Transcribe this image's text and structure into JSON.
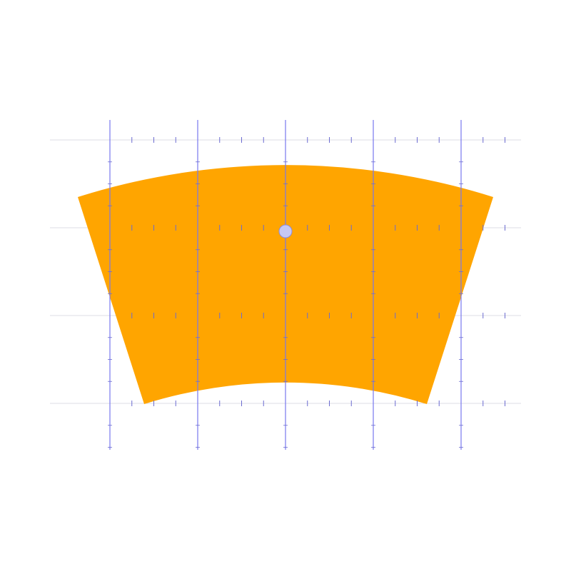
{
  "diagram": {
    "shape": "annular-sector",
    "colors": {
      "background": "#ffffff",
      "sector_fill": "#ffa500",
      "vertical_gridline": "#7777ee",
      "horizontal_gridline": "#dddde6",
      "tick": "#6b6bd0",
      "center_marker_fill": "#c6c8f4",
      "center_marker_stroke": "#8a8adf"
    },
    "grid": {
      "vertical_line_count": 5,
      "horizontal_line_count": 4,
      "minor_ticks_per_cell": 4
    },
    "center_marker": {
      "shape": "circle",
      "label": ""
    }
  }
}
